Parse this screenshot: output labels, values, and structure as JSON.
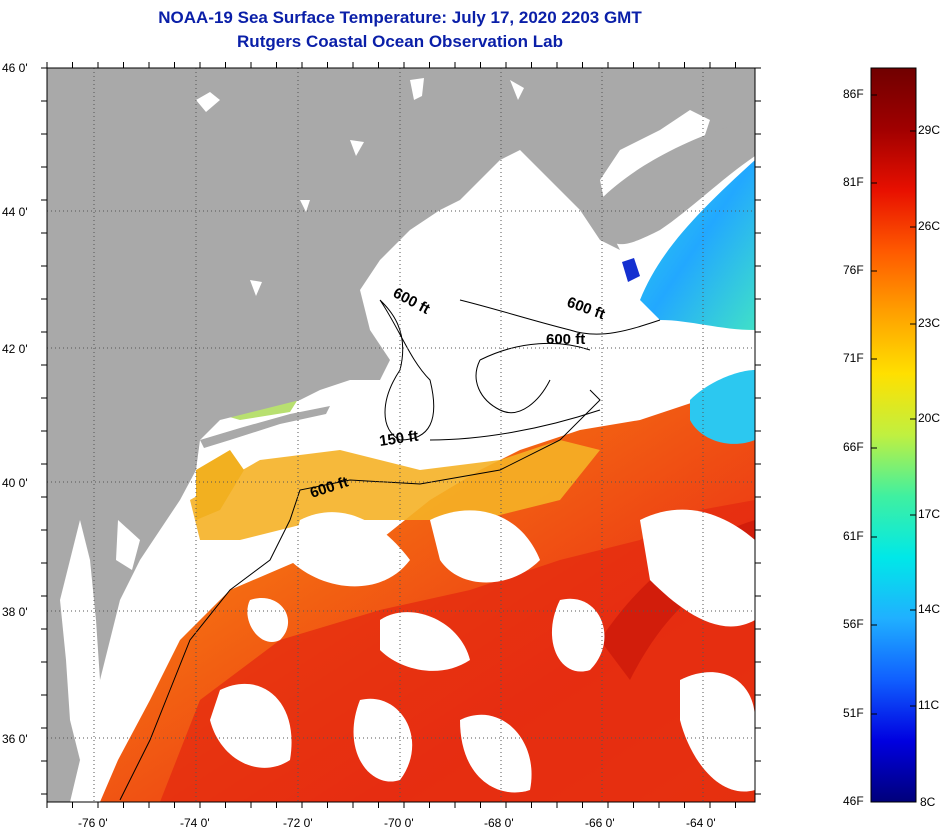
{
  "header": {
    "title_line1": "NOAA-19 Sea Surface Temperature:  July 17, 2020 2203 GMT",
    "title_line2": "Rutgers Coastal Ocean Observation Lab"
  },
  "map": {
    "lat_labels": [
      "46 0'",
      "44 0'",
      "42 0'",
      "40 0'",
      "38 0'",
      "36 0'"
    ],
    "lon_labels": [
      "-76 0'",
      "-74 0'",
      "-72 0'",
      "-70 0'",
      "-68 0'",
      "-66 0'",
      "-64 0'"
    ],
    "contour_labels": [
      "600 ft",
      "600 ft",
      "600 ft",
      "150 ft",
      "600 ft"
    ]
  },
  "colorbar": {
    "f_labels": [
      "86F",
      "81F",
      "76F",
      "71F",
      "66F",
      "61F",
      "56F",
      "51F",
      "46F"
    ],
    "c_labels": [
      "29C",
      "26C",
      "23C",
      "20C",
      "17C",
      "14C",
      "11C",
      "8C"
    ],
    "gradient_colors": [
      "#00007a",
      "#0000e0",
      "#1060ff",
      "#20b0ff",
      "#00e8e8",
      "#40f0a0",
      "#c0f040",
      "#ffe000",
      "#ffa000",
      "#ff5a00",
      "#e81000",
      "#a00000",
      "#700000"
    ]
  },
  "colors": {
    "land": "#a9a9a9",
    "cloud_water": "#ffffff",
    "title": "#0a1fa8"
  }
}
